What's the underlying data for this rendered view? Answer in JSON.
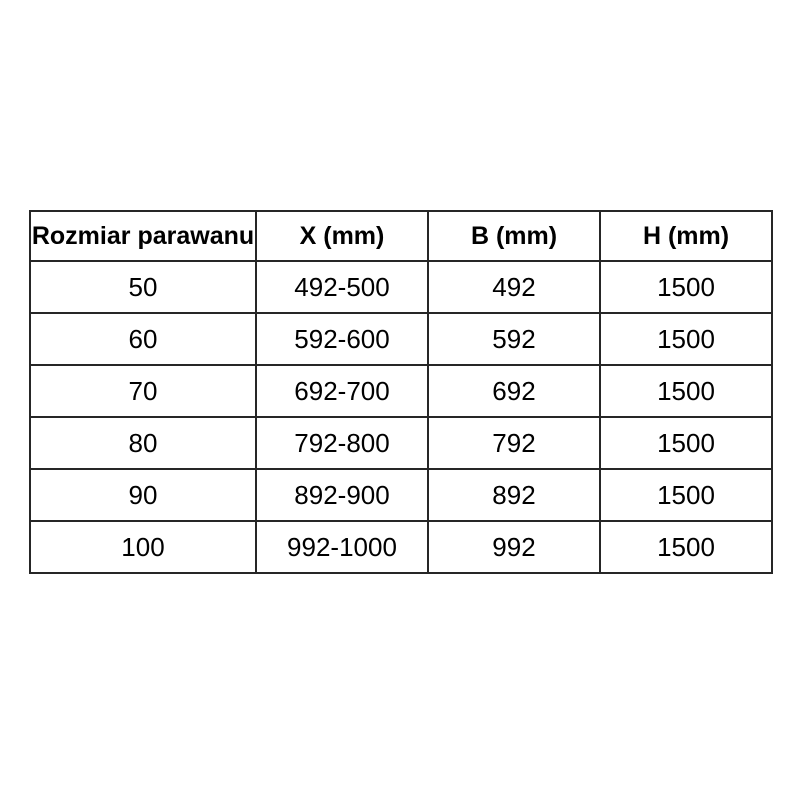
{
  "colors": {
    "background": "#ffffff",
    "border": "#262626",
    "text": "#000000"
  },
  "table": {
    "headers": [
      "Rozmiar parawanu",
      "X (mm)",
      "B (mm)",
      "H (mm)"
    ],
    "rows": [
      [
        "50",
        "492-500",
        "492",
        "1500"
      ],
      [
        "60",
        "592-600",
        "592",
        "1500"
      ],
      [
        "70",
        "692-700",
        "692",
        "1500"
      ],
      [
        "80",
        "792-800",
        "792",
        "1500"
      ],
      [
        "90",
        "892-900",
        "892",
        "1500"
      ],
      [
        "100",
        "992-1000",
        "992",
        "1500"
      ]
    ]
  }
}
